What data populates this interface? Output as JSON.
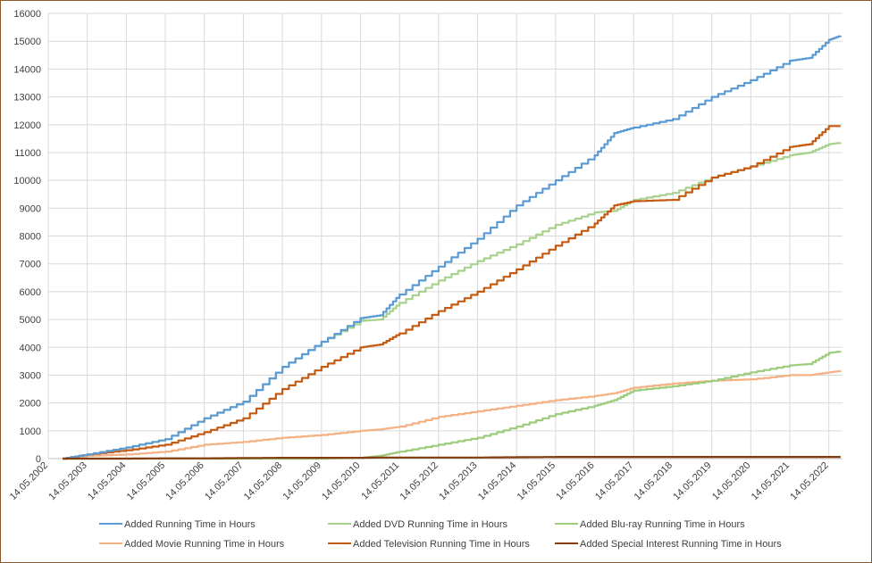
{
  "chart_data": {
    "type": "line",
    "title": "",
    "xlabel": "",
    "ylabel": "",
    "ylim": [
      0,
      16000
    ],
    "yticks": [
      0,
      1000,
      2000,
      3000,
      4000,
      5000,
      6000,
      7000,
      8000,
      9000,
      10000,
      11000,
      12000,
      13000,
      14000,
      15000,
      16000
    ],
    "xticks": [
      "14.05.2002",
      "14.05.2003",
      "14.05.2004",
      "14.05.2005",
      "14.05.2006",
      "14.05.2007",
      "14.05.2008",
      "14.05.2009",
      "14.05.2010",
      "14.05.2011",
      "14.05.2012",
      "14.05.2013",
      "14.05.2014",
      "14.05.2015",
      "14.05.2016",
      "14.05.2017",
      "14.05.2018",
      "14.05.2019",
      "14.05.2020",
      "14.05.2021",
      "14.05.2022"
    ],
    "x": [
      2002.37,
      2003.0,
      2004.0,
      2005.0,
      2006.0,
      2007.0,
      2008.0,
      2009.0,
      2010.0,
      2010.5,
      2011.0,
      2012.0,
      2013.0,
      2014.0,
      2015.0,
      2016.0,
      2016.5,
      2017.0,
      2018.0,
      2019.0,
      2020.0,
      2021.0,
      2021.5,
      2022.0,
      2022.3
    ],
    "grid": true,
    "legend_position": "bottom",
    "series": [
      {
        "name": "Added Running Time in Hours",
        "color": "#5b9bd5",
        "values": [
          0,
          150,
          400,
          700,
          1450,
          2050,
          3300,
          4200,
          5050,
          5150,
          5900,
          6900,
          7900,
          9100,
          10000,
          10900,
          11700,
          11900,
          12200,
          13000,
          13600,
          14300,
          14400,
          15050,
          15200
        ]
      },
      {
        "name": "Added DVD Running Time in Hours",
        "color": "#a9d18e",
        "values": [
          0,
          150,
          400,
          700,
          1450,
          2050,
          3300,
          4200,
          4950,
          5000,
          5600,
          6400,
          7100,
          7700,
          8400,
          8850,
          8900,
          9300,
          9550,
          10100,
          10500,
          10900,
          11000,
          11300,
          11350
        ]
      },
      {
        "name": "Added Blu-ray Running Time in Hours",
        "color": "#9ccc7c",
        "values": [
          0,
          0,
          0,
          0,
          0,
          0,
          0,
          0,
          30,
          100,
          250,
          500,
          750,
          1150,
          1600,
          1900,
          2100,
          2450,
          2600,
          2800,
          3100,
          3350,
          3400,
          3800,
          3850
        ]
      },
      {
        "name": "Added Movie Running Time in Hours",
        "color": "#f4b183",
        "values": [
          0,
          100,
          150,
          250,
          500,
          600,
          750,
          850,
          1000,
          1050,
          1150,
          1500,
          1700,
          1900,
          2100,
          2250,
          2350,
          2550,
          2700,
          2800,
          2850,
          3000,
          3000,
          3100,
          3150
        ]
      },
      {
        "name": "Added Television Running Time in Hours",
        "color": "#c55a11",
        "values": [
          0,
          150,
          300,
          500,
          950,
          1450,
          2500,
          3300,
          4000,
          4100,
          4500,
          5300,
          6000,
          6800,
          7650,
          8450,
          9100,
          9250,
          9300,
          10100,
          10500,
          11200,
          11300,
          11950,
          11950
        ]
      },
      {
        "name": "Added Special Interest Running Time in Hours",
        "color": "#843c0c",
        "values": [
          0,
          0,
          0,
          10,
          10,
          20,
          30,
          30,
          30,
          40,
          40,
          40,
          40,
          50,
          60,
          60,
          60,
          60,
          60,
          60,
          60,
          60,
          60,
          60,
          60
        ]
      }
    ]
  }
}
